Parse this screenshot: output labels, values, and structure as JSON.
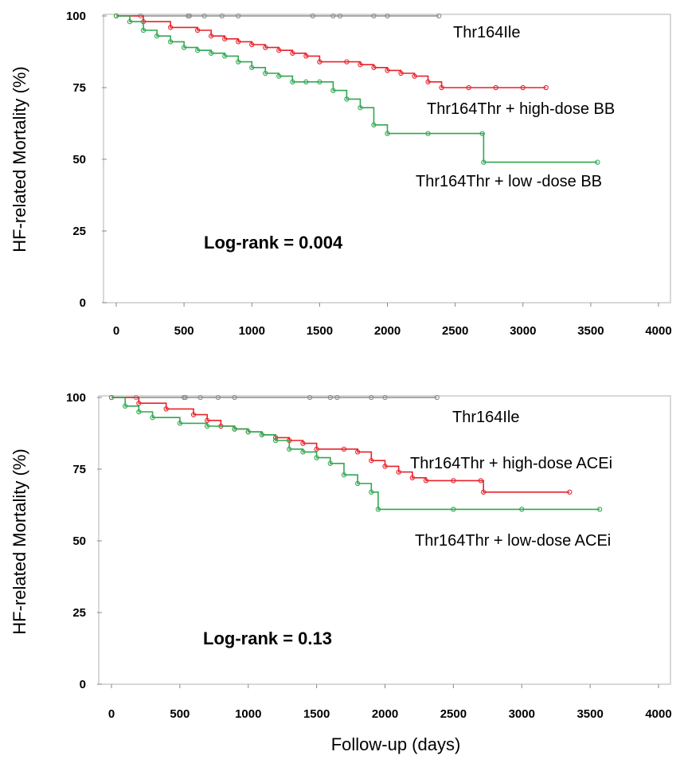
{
  "colors": {
    "ile": "#8c8c8c",
    "high": "#e8222a",
    "low": "#2fa84f"
  },
  "xlabel": "Follow-up (days)",
  "chart_data": [
    {
      "type": "line",
      "ylabel": "HF-related Mortality (%)",
      "xlim": [
        0,
        4000
      ],
      "ylim": [
        0,
        100
      ],
      "xticks": [
        "0",
        "500",
        "1000",
        "1500",
        "2000",
        "2500",
        "3000",
        "3500",
        "4000"
      ],
      "yticks": [
        "0",
        "25",
        "50",
        "75",
        "100"
      ],
      "annotation": "Log-rank  = 0.004",
      "series": [
        {
          "name": "Thr164Ile",
          "color_key": "ile",
          "x": [
            0,
            2380
          ],
          "y": [
            100,
            100
          ],
          "censor_x": [
            180,
            530,
            540,
            650,
            780,
            900,
            1450,
            1600,
            1650,
            1900,
            2000,
            2380
          ]
        },
        {
          "name": "Thr164Thr + high-dose BB",
          "color_key": "high",
          "x": [
            0,
            200,
            400,
            600,
            700,
            800,
            900,
            1000,
            1100,
            1200,
            1300,
            1400,
            1500,
            1700,
            1800,
            1900,
            2000,
            2100,
            2200,
            2300,
            2400,
            2600,
            2800,
            3000,
            3170
          ],
          "y": [
            100,
            98,
            96,
            95,
            93,
            92,
            91,
            90,
            89,
            88,
            87,
            86,
            84,
            84,
            83,
            82,
            81,
            80,
            79,
            77,
            75,
            75,
            75,
            75,
            75
          ]
        },
        {
          "name": "Thr164Thr + low -dose BB",
          "color_key": "low",
          "x": [
            0,
            100,
            200,
            300,
            400,
            500,
            600,
            700,
            800,
            900,
            1000,
            1100,
            1200,
            1300,
            1400,
            1500,
            1600,
            1700,
            1800,
            1900,
            2000,
            2300,
            2700,
            2710,
            3550
          ],
          "y": [
            100,
            98,
            95,
            93,
            91,
            89,
            88,
            87,
            86,
            84,
            82,
            80,
            79,
            77,
            77,
            77,
            74,
            71,
            68,
            62,
            59,
            59,
            59,
            49,
            49
          ]
        }
      ]
    },
    {
      "type": "line",
      "ylabel": "HF-related Mortality (%)",
      "xlim": [
        0,
        4000
      ],
      "ylim": [
        0,
        100
      ],
      "xticks": [
        "0",
        "500",
        "1000",
        "1500",
        "2000",
        "2500",
        "3000",
        "3500",
        "4000"
      ],
      "yticks": [
        "0",
        "25",
        "50",
        "75",
        "100"
      ],
      "annotation": "Log-rank  = 0.13",
      "series": [
        {
          "name": "Thr164Ile",
          "color_key": "ile",
          "x": [
            0,
            2380
          ],
          "y": [
            100,
            100
          ],
          "censor_x": [
            180,
            530,
            540,
            650,
            780,
            900,
            1450,
            1600,
            1650,
            1900,
            2000,
            2380
          ]
        },
        {
          "name": "Thr164Thr + high-dose ACEi",
          "color_key": "high",
          "x": [
            0,
            200,
            400,
            600,
            700,
            800,
            900,
            1000,
            1100,
            1200,
            1300,
            1400,
            1500,
            1700,
            1800,
            1900,
            2000,
            2100,
            2200,
            2300,
            2500,
            2700,
            2720,
            3350
          ],
          "y": [
            100,
            98,
            96,
            94,
            92,
            90,
            89,
            88,
            87,
            86,
            85,
            84,
            82,
            82,
            81,
            78,
            76,
            74,
            72,
            71,
            71,
            71,
            67,
            67
          ]
        },
        {
          "name": "Thr164Thr + low-dose ACEi",
          "color_key": "low",
          "x": [
            0,
            100,
            200,
            300,
            500,
            700,
            900,
            1000,
            1100,
            1200,
            1300,
            1400,
            1500,
            1600,
            1700,
            1800,
            1900,
            1950,
            2500,
            3000,
            3570
          ],
          "y": [
            100,
            97,
            95,
            93,
            91,
            90,
            89,
            88,
            87,
            85,
            82,
            81,
            79,
            77,
            73,
            70,
            67,
            61,
            61,
            61,
            61
          ]
        }
      ]
    }
  ]
}
